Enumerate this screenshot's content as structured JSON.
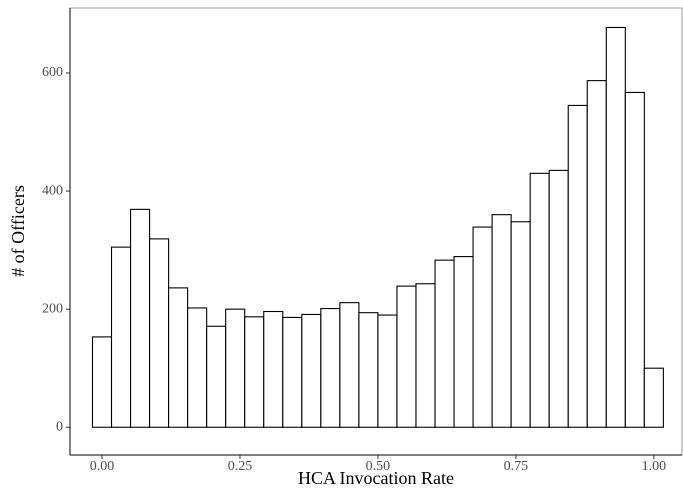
{
  "chart_data": {
    "type": "histogram",
    "x_label": "HCA Invocation Rate",
    "y_label": "# of Officers",
    "bins": [
      -0.01724,
      0.01724,
      0.05172,
      0.08621,
      0.12069,
      0.15517,
      0.18966,
      0.22414,
      0.25862,
      0.2931,
      0.32759,
      0.36207,
      0.39655,
      0.43103,
      0.46552,
      0.5,
      0.53448,
      0.56897,
      0.60345,
      0.63793,
      0.67241,
      0.7069,
      0.74138,
      0.77586,
      0.81034,
      0.84483,
      0.87931,
      0.91379,
      0.94828,
      0.98276,
      1.01724
    ],
    "counts": [
      153,
      305,
      369,
      319,
      236,
      202,
      171,
      200,
      187,
      196,
      186,
      191,
      201,
      211,
      194,
      190,
      239,
      243,
      283,
      289,
      339,
      360,
      348,
      430,
      435,
      545,
      587,
      677,
      567,
      100
    ],
    "color": "#ffffff",
    "edge_color": "#000000",
    "xlim": [
      -0.058,
      1.051
    ],
    "ylim": [
      -47,
      710
    ],
    "xticks": [
      {
        "value": 0,
        "label": "0.00"
      },
      {
        "value": 0.25,
        "label": "0.25"
      },
      {
        "value": 0.5,
        "label": "0.50"
      },
      {
        "value": 0.75,
        "label": "0.75"
      },
      {
        "value": 1,
        "label": "1.00"
      }
    ],
    "yticks": [
      0,
      200,
      400,
      600
    ],
    "grid": false
  }
}
